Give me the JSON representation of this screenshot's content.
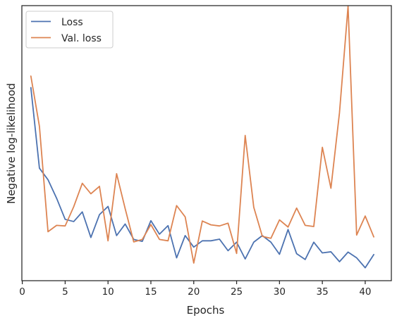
{
  "chart_data": {
    "type": "line",
    "title": "",
    "xlabel": "Epochs",
    "ylabel": "Negative log-likelihood",
    "xlim": [
      -0.05,
      43.05
    ],
    "ylim": [
      0,
      100
    ],
    "x_ticks": [
      0,
      5,
      10,
      15,
      20,
      25,
      30,
      35,
      40
    ],
    "y_tick_labels_shown": false,
    "grid": false,
    "legend_position": "top-left",
    "x": [
      1,
      2,
      3,
      4,
      5,
      6,
      7,
      8,
      9,
      10,
      11,
      12,
      13,
      14,
      15,
      16,
      17,
      18,
      19,
      20,
      21,
      22,
      23,
      24,
      25,
      26,
      27,
      28,
      29,
      30,
      31,
      32,
      33,
      34,
      35,
      36,
      37,
      38,
      39,
      40,
      41
    ],
    "series": [
      {
        "name": "Loss",
        "color": "#4c72b0",
        "values": [
          70.2,
          40.9,
          36.7,
          30.0,
          22.3,
          21.5,
          25.0,
          15.7,
          24.0,
          27.0,
          16.4,
          20.6,
          15.0,
          14.3,
          21.8,
          16.9,
          20.0,
          8.3,
          16.4,
          12.2,
          14.5,
          14.5,
          15.1,
          10.9,
          14.0,
          7.9,
          14.0,
          16.4,
          14.0,
          9.6,
          18.6,
          9.8,
          7.7,
          14.0,
          10.1,
          10.5,
          6.9,
          10.4,
          8.3,
          4.7,
          9.5
        ]
      },
      {
        "name": "Val. loss",
        "color": "#dd8452",
        "values": [
          74.4,
          56.1,
          17.8,
          20.1,
          19.9,
          26.9,
          35.4,
          31.6,
          34.3,
          14.5,
          38.9,
          26.2,
          14.1,
          15.0,
          20.4,
          15.0,
          14.5,
          27.3,
          23.2,
          6.4,
          21.7,
          20.3,
          19.9,
          20.9,
          9.9,
          52.8,
          26.7,
          16.1,
          15.4,
          22.1,
          19.5,
          26.4,
          20.1,
          19.7,
          48.5,
          33.6,
          61.1,
          99.8,
          16.6,
          23.5,
          15.9
        ]
      }
    ]
  }
}
